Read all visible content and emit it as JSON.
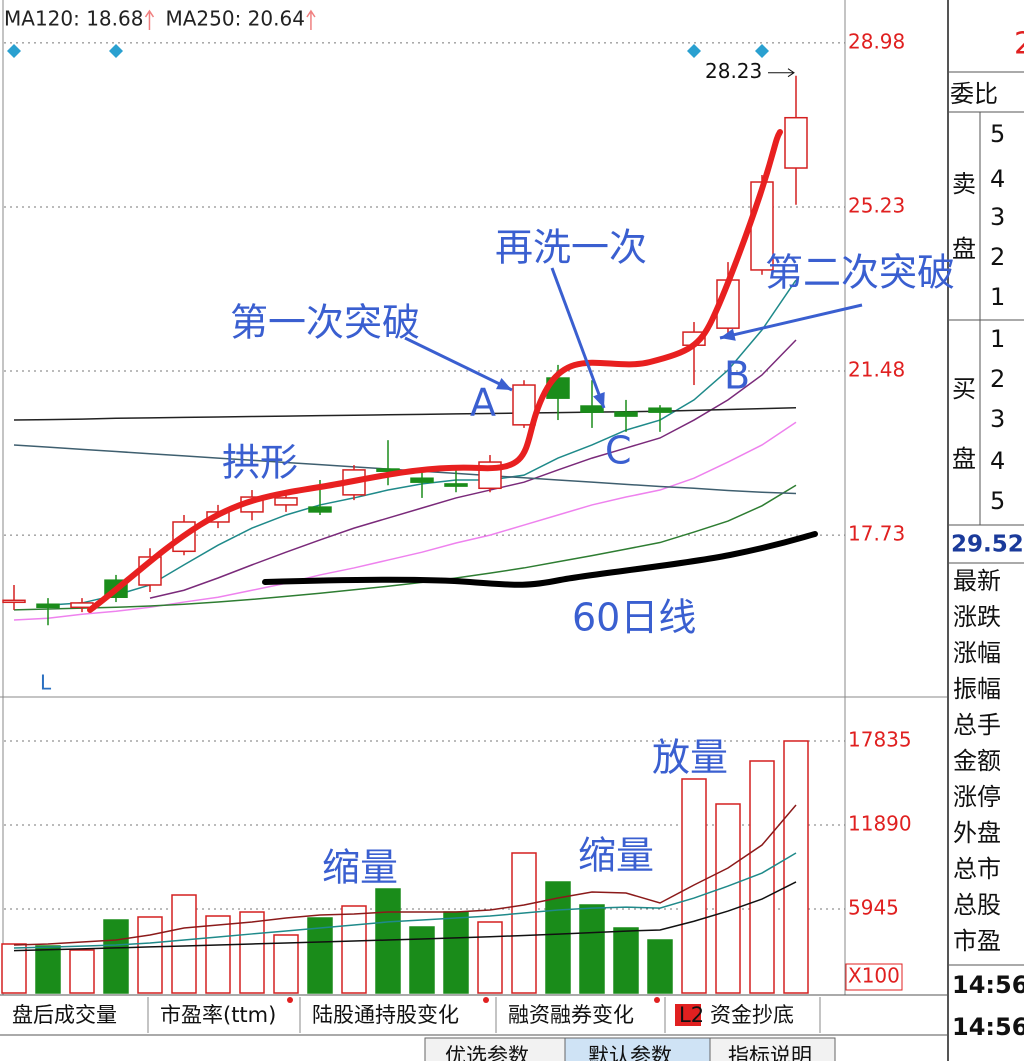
{
  "chart_data": [
    {
      "type": "candlestick",
      "ylim": [
        14.03,
        29.96
      ],
      "yticks": [
        17.73,
        21.48,
        25.23,
        28.98
      ],
      "grid": true,
      "up_color": "#d42020",
      "down_color": "#1a8c1a",
      "open": [
        16.24,
        16.15,
        16.08,
        16.7,
        16.59,
        17.36,
        18.03,
        18.26,
        18.42,
        18.37,
        18.65,
        19.24,
        19.03,
        18.9,
        18.8,
        20.25,
        21.32,
        20.68,
        20.54,
        20.63,
        22.07,
        22.46,
        23.79,
        26.12
      ],
      "high": [
        16.59,
        16.29,
        16.29,
        16.82,
        17.43,
        18.19,
        18.42,
        18.76,
        18.76,
        18.99,
        19.33,
        19.9,
        19.22,
        19.22,
        19.56,
        21.27,
        21.62,
        21.27,
        20.82,
        20.7,
        22.6,
        23.97,
        25.96,
        28.23
      ],
      "low": [
        16.02,
        15.67,
        15.97,
        16.2,
        16.43,
        17.27,
        17.89,
        18.07,
        18.26,
        18.19,
        18.53,
        18.87,
        18.58,
        18.71,
        18.71,
        20.18,
        20.36,
        20.18,
        20.09,
        20.09,
        21.16,
        22.3,
        23.68,
        25.28
      ],
      "close": [
        16.24,
        16.08,
        16.18,
        16.31,
        17.23,
        18.03,
        18.26,
        18.6,
        18.58,
        18.26,
        19.22,
        19.19,
        18.94,
        18.85,
        19.4,
        21.16,
        20.86,
        20.54,
        20.45,
        20.54,
        22.37,
        23.56,
        25.8,
        27.27
      ],
      "lines": [
        {
          "color": "#1f8a8a",
          "values": [
            null,
            16.13,
            16.18,
            16.36,
            16.59,
            17.05,
            17.5,
            17.89,
            18.19,
            18.42,
            18.58,
            18.76,
            18.9,
            18.99,
            18.99,
            19.1,
            19.49,
            19.79,
            20.13,
            20.36,
            20.82,
            21.5,
            22.42,
            23.56
          ]
        },
        {
          "color": "#7a2a7a",
          "values": [
            null,
            null,
            null,
            null,
            16.29,
            16.47,
            16.75,
            17.05,
            17.34,
            17.62,
            17.89,
            18.12,
            18.35,
            18.58,
            18.76,
            18.94,
            19.22,
            19.49,
            19.72,
            19.95,
            20.36,
            20.82,
            21.39,
            22.19
          ]
        },
        {
          "color": "#ee82ee",
          "values": [
            15.79,
            15.83,
            15.92,
            15.99,
            16.08,
            16.2,
            16.31,
            16.47,
            16.63,
            16.82,
            16.98,
            17.16,
            17.34,
            17.55,
            17.73,
            17.96,
            18.19,
            18.42,
            18.6,
            18.76,
            19.03,
            19.4,
            19.79,
            20.31
          ]
        },
        {
          "color": "#2e7d32",
          "values": [
            16.02,
            16.04,
            16.06,
            16.08,
            16.11,
            16.15,
            16.2,
            16.26,
            16.33,
            16.4,
            16.48,
            16.56,
            16.65,
            16.75,
            16.86,
            16.98,
            17.12,
            17.26,
            17.41,
            17.56,
            17.8,
            18.05,
            18.4,
            18.87
          ]
        },
        {
          "label": "MA120: 18.68",
          "color": "#3f5f6f",
          "values": [
            19.79,
            19.74,
            19.69,
            19.64,
            19.59,
            19.54,
            19.49,
            19.44,
            19.39,
            19.34,
            19.29,
            19.24,
            19.19,
            19.14,
            19.09,
            19.04,
            18.99,
            18.94,
            18.89,
            18.84,
            18.8,
            18.75,
            18.71,
            18.68
          ]
        },
        {
          "label": "MA250: 20.64",
          "color": "#222222",
          "values": [
            20.36,
            20.37,
            20.38,
            20.4,
            20.41,
            20.42,
            20.43,
            20.44,
            20.45,
            20.46,
            20.47,
            20.48,
            20.49,
            20.5,
            20.51,
            20.52,
            20.53,
            20.54,
            20.55,
            20.56,
            20.58,
            20.6,
            20.62,
            20.64
          ]
        }
      ],
      "axis_letter": "L",
      "annotations": [
        "第一次突破",
        "再洗一次",
        "第二次突破",
        "A",
        "B",
        "C",
        "拱形",
        "60日线"
      ]
    },
    {
      "type": "bar",
      "ylim": [
        0,
        20948
      ],
      "yticks": [
        5945,
        11890,
        17835
      ],
      "grid": true,
      "unit": "X100",
      "values": [
        3468,
        3326,
        3043,
        5166,
        5379,
        6935,
        5449,
        5732,
        4105,
        5308,
        6157,
        7360,
        4671,
        5732,
        5025,
        9908,
        7855,
        6228,
        4600,
        3751,
        15145,
        13376,
        16419,
        17835
      ],
      "lines": [
        {
          "color": "#8b1a1a",
          "values": [
            3397,
            3468,
            3609,
            3751,
            4105,
            4600,
            4812,
            5025,
            5308,
            5520,
            5591,
            5732,
            5732,
            5732,
            5874,
            6228,
            6723,
            7148,
            7077,
            6369,
            7643,
            8846,
            10474,
            13305
          ]
        },
        {
          "color": "#1f8a8a",
          "values": [
            3185,
            3250,
            3320,
            3400,
            3540,
            3750,
            3960,
            4180,
            4390,
            4600,
            4810,
            5030,
            5170,
            5310,
            5450,
            5660,
            5870,
            6010,
            6080,
            6010,
            6720,
            7570,
            8490,
            9910
          ]
        },
        {
          "color": "#111111",
          "values": [
            3000,
            3060,
            3120,
            3190,
            3260,
            3330,
            3400,
            3470,
            3540,
            3610,
            3680,
            3750,
            3820,
            3900,
            3980,
            4070,
            4170,
            4270,
            4380,
            4460,
            5080,
            5800,
            6650,
            7860
          ]
        }
      ],
      "annotations": [
        "缩量",
        "缩量",
        "放量"
      ]
    }
  ],
  "side_panel": {
    "top_digit": "2",
    "ratio": "委比",
    "sell": [
      "卖",
      "盘"
    ],
    "sell_levels": [
      5,
      4,
      3,
      2,
      1
    ],
    "buy": [
      "买",
      "盘"
    ],
    "buy_levels": [
      1,
      2,
      3,
      4,
      5
    ],
    "price": "29.52",
    "fields": [
      "最新",
      "涨跌",
      "涨幅",
      "振幅",
      "总手",
      "金额",
      "涨停",
      "外盘",
      "总市",
      "总股",
      "市盈"
    ],
    "times": [
      "14:56",
      "14:56"
    ]
  },
  "tabs": [
    "盘后成交量",
    "市盈率(ttm)",
    "陆股通持股变化",
    "融资融券变化",
    "L2",
    "资金抄底"
  ],
  "buttons": [
    "优选参数",
    "默认参数",
    "指标说明"
  ]
}
